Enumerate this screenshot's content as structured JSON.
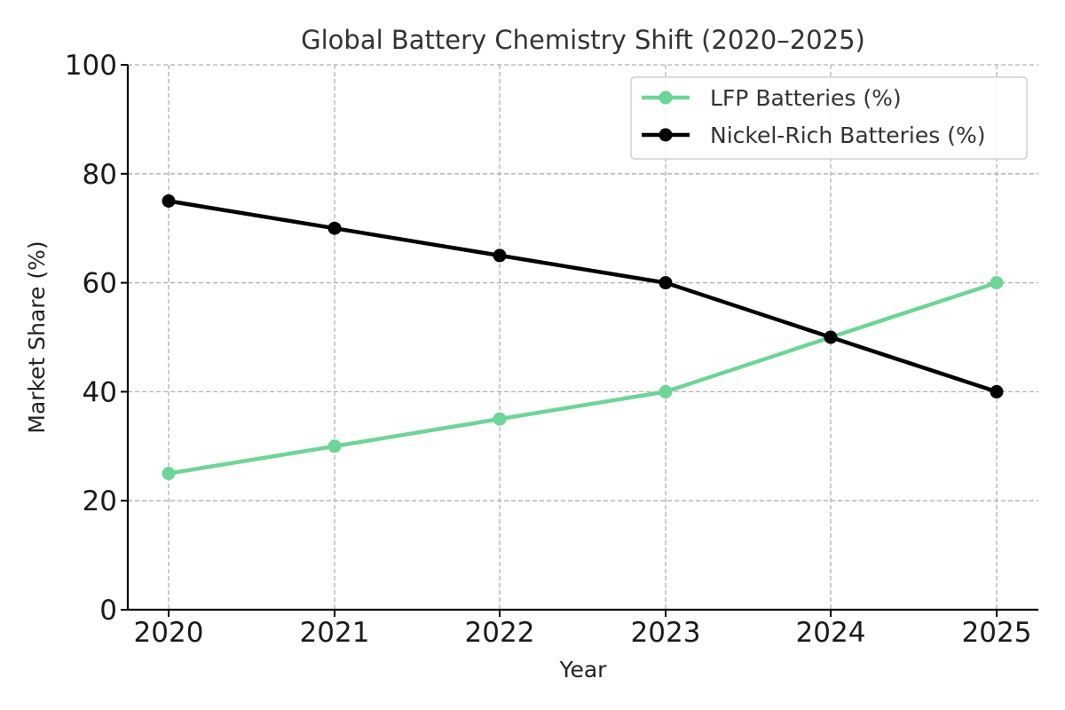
{
  "chart_data": {
    "type": "line",
    "title": "Global Battery Chemistry Shift (2020–2025)",
    "xlabel": "Year",
    "ylabel": "Market Share (%)",
    "x": [
      "2020",
      "2021",
      "2022",
      "2023",
      "2024",
      "2025"
    ],
    "ylim": [
      0,
      100
    ],
    "yticks": [
      "0",
      "20",
      "40",
      "60",
      "80",
      "100"
    ],
    "grid": true,
    "legend_position": "top-right",
    "series": [
      {
        "name": "LFP Batteries (%)",
        "values": [
          25,
          30,
          35,
          40,
          50,
          60
        ],
        "color": "#6dd595"
      },
      {
        "name": "Nickel-Rich Batteries (%)",
        "values": [
          75,
          70,
          65,
          60,
          50,
          40
        ],
        "color": "#000000"
      }
    ]
  }
}
